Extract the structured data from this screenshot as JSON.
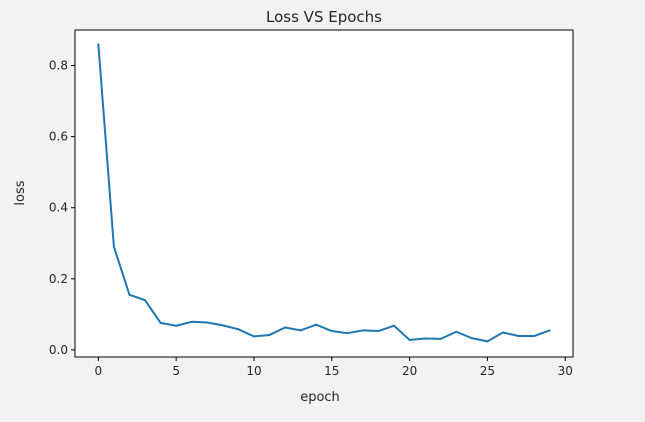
{
  "chart_data": {
    "type": "line",
    "title": "Loss VS Epochs",
    "xlabel": "epoch",
    "ylabel": "loss",
    "xlim": [
      -1.5,
      30.5
    ],
    "ylim": [
      -0.02,
      0.9
    ],
    "xticks": [
      0,
      5,
      10,
      15,
      20,
      25,
      30
    ],
    "yticks": [
      0.0,
      0.2,
      0.4,
      0.6,
      0.8
    ],
    "xtick_labels": [
      "0",
      "5",
      "10",
      "15",
      "20",
      "25",
      "30"
    ],
    "ytick_labels": [
      "0.0",
      "0.2",
      "0.4",
      "0.6",
      "0.8"
    ],
    "grid": false,
    "series": [
      {
        "color": "#1f77b4",
        "x": [
          0,
          1,
          2,
          3,
          4,
          5,
          6,
          7,
          8,
          9,
          10,
          11,
          12,
          13,
          14,
          15,
          16,
          17,
          18,
          19,
          20,
          21,
          22,
          23,
          24,
          25,
          26,
          27,
          28,
          29
        ],
        "values": [
          0.86,
          0.29,
          0.155,
          0.14,
          0.076,
          0.068,
          0.079,
          0.077,
          0.069,
          0.058,
          0.038,
          0.042,
          0.063,
          0.055,
          0.071,
          0.053,
          0.047,
          0.055,
          0.053,
          0.068,
          0.028,
          0.032,
          0.031,
          0.051,
          0.033,
          0.024,
          0.049,
          0.039,
          0.039,
          0.055
        ]
      }
    ]
  }
}
